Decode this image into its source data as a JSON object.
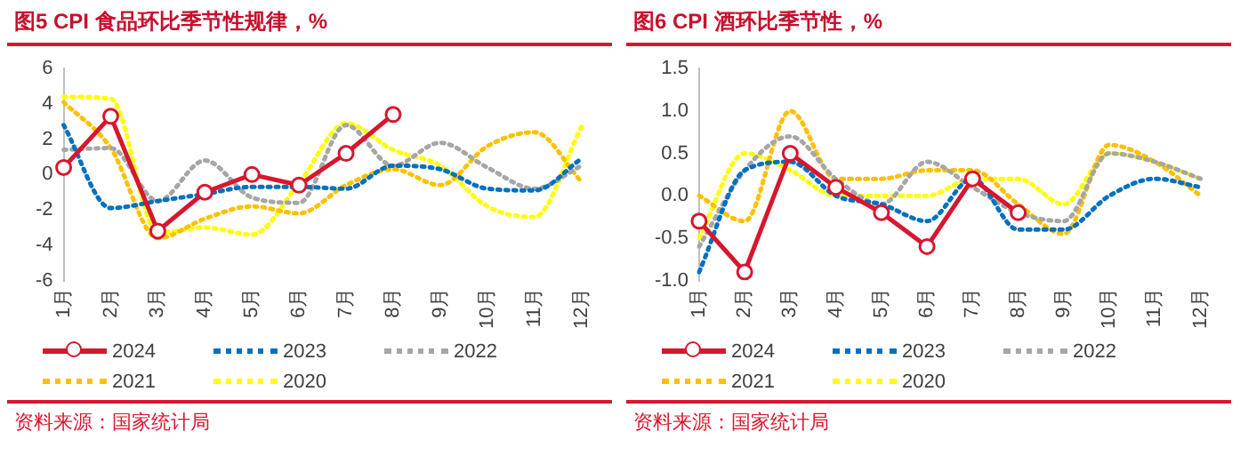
{
  "chart_data": [
    {
      "type": "line",
      "title": "图5  CPI 食品环比季节性规律，%",
      "categories": [
        "1月",
        "2月",
        "3月",
        "4月",
        "5月",
        "6月",
        "7月",
        "8月",
        "9月",
        "10月",
        "11月",
        "12月"
      ],
      "ylim": [
        -6,
        6
      ],
      "yticks": [
        -6,
        -4,
        -2,
        0,
        2,
        4,
        6
      ],
      "grid": false,
      "legend": "bottom",
      "marker": "none",
      "annotations": [
        "资料来源：国家统计局"
      ],
      "series": [
        {
          "name": "2024",
          "color": "#d7172f",
          "line_style": "solid",
          "marker": "circle",
          "values": [
            0.4,
            3.3,
            -3.2,
            -1.0,
            0.0,
            -0.6,
            1.2,
            3.4,
            null,
            null,
            null,
            null
          ]
        },
        {
          "name": "2023",
          "color": "#0070c0",
          "line_style": "dotted",
          "values": [
            2.8,
            -1.9,
            -1.5,
            -1.1,
            -0.7,
            -0.7,
            -0.8,
            0.5,
            0.3,
            -0.8,
            -0.9,
            0.9
          ]
        },
        {
          "name": "2022",
          "color": "#a6a6a6",
          "line_style": "dotted",
          "values": [
            1.4,
            1.5,
            -1.5,
            0.8,
            -1.3,
            -1.6,
            2.8,
            0.5,
            1.8,
            0.4,
            -0.8,
            0.5
          ]
        },
        {
          "name": "2021",
          "color": "#ffc000",
          "line_style": "dotted",
          "values": [
            4.1,
            1.5,
            -3.6,
            -2.5,
            -1.8,
            -2.2,
            -0.6,
            0.3,
            -0.6,
            1.6,
            2.4,
            -0.4
          ]
        },
        {
          "name": "2020",
          "color": "#ffff00",
          "line_style": "dotted",
          "values": [
            4.4,
            4.3,
            -3.3,
            -3.0,
            -3.4,
            -0.5,
            2.9,
            1.4,
            0.5,
            -1.8,
            -2.4,
            2.7
          ]
        }
      ]
    },
    {
      "type": "line",
      "title": "图6  CPI 酒环比季节性，%",
      "categories": [
        "1月",
        "2月",
        "3月",
        "4月",
        "5月",
        "6月",
        "7月",
        "8月",
        "9月",
        "10月",
        "11月",
        "12月"
      ],
      "ylim": [
        -1,
        1.5
      ],
      "yticks": [
        {
          "value": -1,
          "label": "-1.0"
        },
        {
          "value": -0.5,
          "label": "-0.5"
        },
        {
          "value": 0,
          "label": "0.0"
        },
        {
          "value": 0.5,
          "label": "0.5"
        },
        {
          "value": 1,
          "label": "1.0"
        },
        {
          "value": 1.5,
          "label": "1.5"
        }
      ],
      "grid": false,
      "legend": "bottom",
      "marker": "none",
      "annotations": [
        "资料来源：国家统计局"
      ],
      "series": [
        {
          "name": "2024",
          "color": "#d7172f",
          "line_style": "solid",
          "marker": "circle",
          "values": [
            -0.3,
            -0.9,
            0.5,
            0.1,
            -0.2,
            -0.6,
            0.2,
            -0.2,
            null,
            null,
            null,
            null
          ]
        },
        {
          "name": "2023",
          "color": "#0070c0",
          "line_style": "dotted",
          "values": [
            -0.9,
            0.3,
            0.4,
            0.0,
            -0.1,
            -0.3,
            0.2,
            -0.4,
            -0.4,
            0.0,
            0.2,
            0.1
          ]
        },
        {
          "name": "2022",
          "color": "#a6a6a6",
          "line_style": "dotted",
          "values": [
            -0.6,
            0.3,
            0.7,
            0.2,
            -0.1,
            0.4,
            0.1,
            -0.2,
            -0.3,
            0.5,
            0.4,
            0.2
          ]
        },
        {
          "name": "2021",
          "color": "#ffc000",
          "line_style": "dotted",
          "values": [
            0.0,
            -0.3,
            1.0,
            0.2,
            0.2,
            0.3,
            0.3,
            -0.1,
            -0.45,
            0.6,
            0.4,
            0.0
          ]
        },
        {
          "name": "2020",
          "color": "#ffff00",
          "line_style": "dotted",
          "values": [
            -0.5,
            0.5,
            0.3,
            0.0,
            0.0,
            0.0,
            0.2,
            0.2,
            -0.1,
            0.5,
            0.4,
            0.2
          ]
        }
      ]
    }
  ]
}
